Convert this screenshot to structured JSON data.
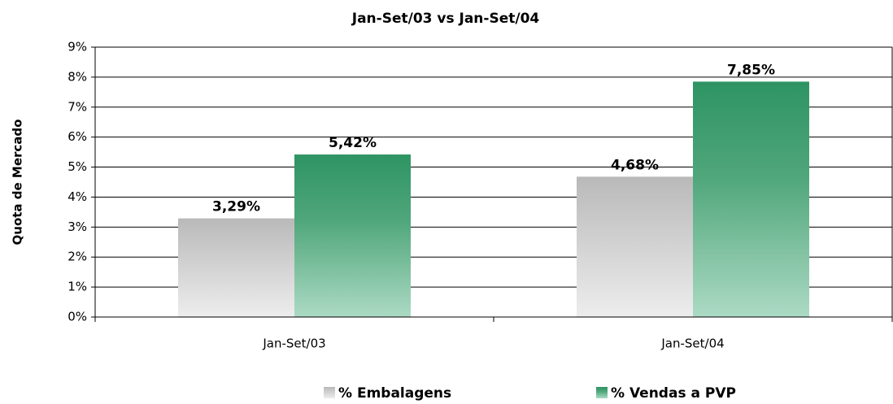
{
  "chart_data": {
    "type": "bar",
    "title": "Jan-Set/03  vs  Jan-Set/04",
    "y_label": "Quota de Mercado",
    "categories": [
      "Jan-Set/03",
      "Jan-Set/04"
    ],
    "series": [
      {
        "name": "% Embalagens",
        "color": "#b9b9b9",
        "values": [
          3.29,
          4.68
        ],
        "value_labels": [
          "3,29%",
          "4,68%"
        ]
      },
      {
        "name": "% Vendas a PVP",
        "color": "#2e9463",
        "values": [
          5.42,
          7.85
        ],
        "value_labels": [
          "5,42%",
          "7,85%"
        ]
      }
    ],
    "ylim": [
      0,
      9
    ],
    "yticks": [
      {
        "value": 0,
        "label": "0%"
      },
      {
        "value": 1,
        "label": "1%"
      },
      {
        "value": 2,
        "label": "2%"
      },
      {
        "value": 3,
        "label": "3%"
      },
      {
        "value": 4,
        "label": "4%"
      },
      {
        "value": 5,
        "label": "5%"
      },
      {
        "value": 6,
        "label": "6%"
      },
      {
        "value": 7,
        "label": "7%"
      },
      {
        "value": 8,
        "label": "8%"
      },
      {
        "value": 9,
        "label": "9%"
      }
    ],
    "grid": true,
    "legend": "bottom"
  }
}
